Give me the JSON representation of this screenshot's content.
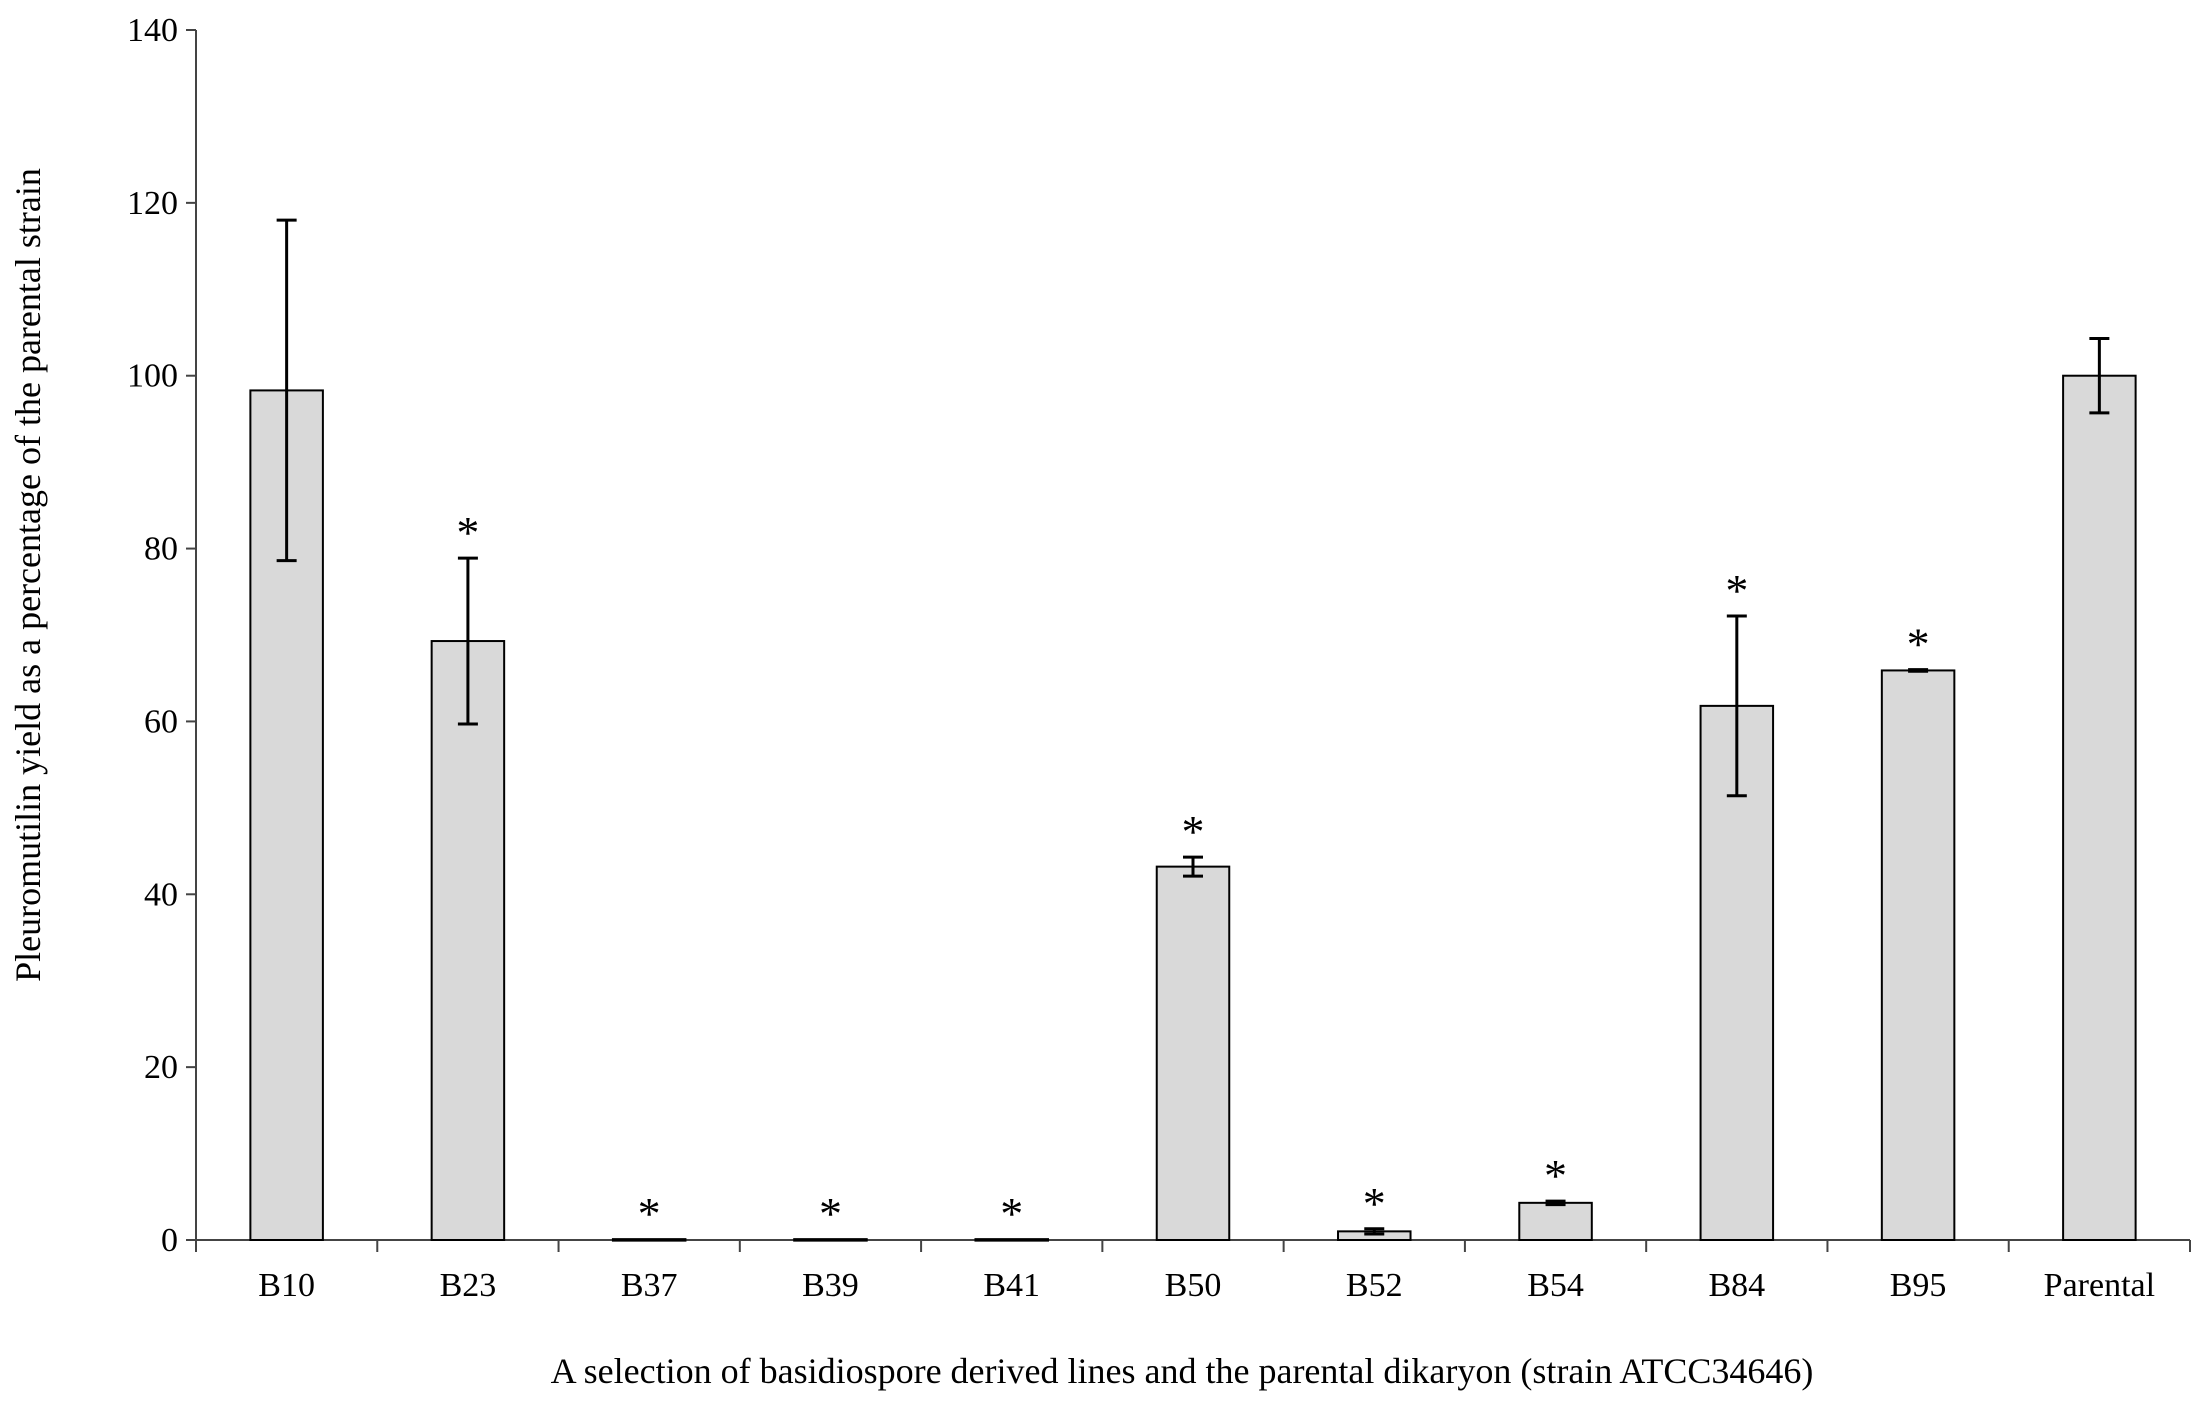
{
  "chart_data": {
    "type": "bar",
    "title": "",
    "xlabel": "A selection of basidiospore derived lines and the parental dikaryon (strain ATCC34646)",
    "ylabel": "Pleuromutilin yield as a percentage of the parental strain",
    "ylim": [
      0,
      140
    ],
    "yticks": [
      0,
      20,
      40,
      60,
      80,
      100,
      120,
      140
    ],
    "grid": false,
    "categories": [
      "B10",
      "B23",
      "B37",
      "B39",
      "B41",
      "B50",
      "B52",
      "B54",
      "B84",
      "B95",
      "Parental"
    ],
    "values": [
      98.3,
      69.3,
      0.1,
      0.1,
      0.1,
      43.2,
      1.0,
      4.3,
      61.8,
      65.9,
      100
    ],
    "errors": [
      19.7,
      9.6,
      0,
      0,
      0,
      1.1,
      0.3,
      0.2,
      10.4,
      0.1,
      4.3
    ],
    "significance": [
      "",
      "*",
      "*",
      "*",
      "*",
      "*",
      "*",
      "*",
      "*",
      "*",
      ""
    ],
    "bar_color": "#d9d9d9",
    "edge_color": "#000000"
  }
}
